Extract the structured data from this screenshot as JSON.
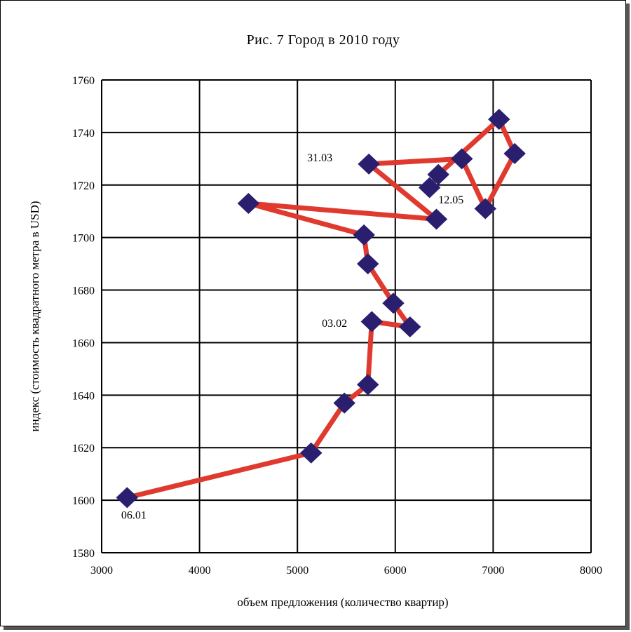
{
  "chart_data": {
    "type": "scatter",
    "title": "Рис. 7 Город в 2010 году",
    "xlabel": "объем предложения (количество квартир)",
    "ylabel": "индекс (стоимость квадратного метра в USD)",
    "xlim": [
      3000,
      8000
    ],
    "ylim": [
      1580,
      1760
    ],
    "xticks": [
      3000,
      4000,
      5000,
      6000,
      7000,
      8000
    ],
    "yticks": [
      1580,
      1600,
      1620,
      1640,
      1660,
      1680,
      1700,
      1720,
      1740,
      1760
    ],
    "grid": true,
    "line_color": "#e03a2e",
    "marker_color": "#2a1f6e",
    "series": [
      {
        "points": [
          {
            "x": 3260,
            "y": 1601
          },
          {
            "x": 5140,
            "y": 1618
          },
          {
            "x": 5480,
            "y": 1637
          },
          {
            "x": 5720,
            "y": 1644
          },
          {
            "x": 5760,
            "y": 1668
          },
          {
            "x": 6150,
            "y": 1666
          },
          {
            "x": 5980,
            "y": 1675
          },
          {
            "x": 5720,
            "y": 1690
          },
          {
            "x": 5680,
            "y": 1701
          },
          {
            "x": 4500,
            "y": 1713
          },
          {
            "x": 6420,
            "y": 1707
          },
          {
            "x": 5730,
            "y": 1728
          },
          {
            "x": 6680,
            "y": 1730
          },
          {
            "x": 6920,
            "y": 1711
          },
          {
            "x": 7220,
            "y": 1732
          },
          {
            "x": 7060,
            "y": 1745
          },
          {
            "x": 6440,
            "y": 1724
          },
          {
            "x": 6350,
            "y": 1719
          }
        ]
      }
    ],
    "annotations": [
      {
        "text": "06.01",
        "x": 3200,
        "y": 1593
      },
      {
        "text": "03.02",
        "x": 5250,
        "y": 1666
      },
      {
        "text": "31.03",
        "x": 5100,
        "y": 1729
      },
      {
        "text": "12.05",
        "x": 6440,
        "y": 1713
      }
    ]
  }
}
